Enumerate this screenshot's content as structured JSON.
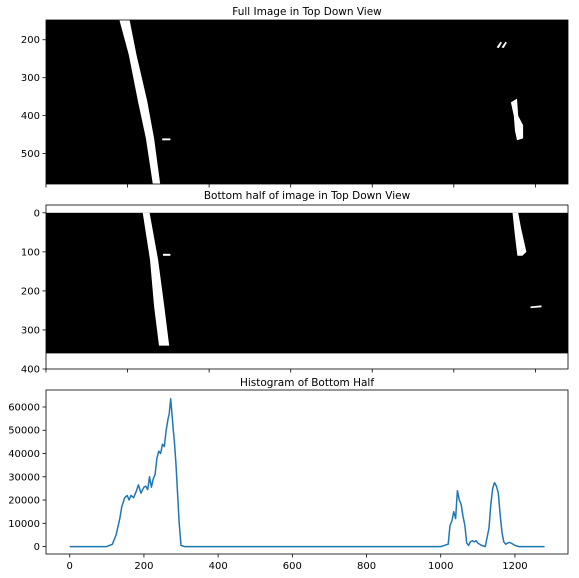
{
  "chart_data": [
    {
      "type": "image",
      "title": "Full Image in Top Down View",
      "xlim": [
        0,
        1280
      ],
      "ylim": [
        580,
        148
      ],
      "image_extent": {
        "x": [
          0,
          1280
        ],
        "y": [
          580,
          148
        ]
      },
      "yticks": [
        200,
        300,
        400,
        500
      ],
      "xticks": [
        0,
        200,
        400,
        600,
        800,
        1000,
        1200
      ],
      "show_xtick_labels": false,
      "image_background": "#000000",
      "lane_color": "#ffffff",
      "left_lane_path": [
        [
          180,
          148
        ],
        [
          205,
          148
        ],
        [
          222,
          240
        ],
        [
          248,
          360
        ],
        [
          265,
          460
        ],
        [
          280,
          580
        ],
        [
          262,
          580
        ],
        [
          245,
          460
        ],
        [
          225,
          360
        ],
        [
          203,
          240
        ]
      ],
      "left_lane_fragments": [
        [
          [
            285,
            460
          ],
          [
            305,
            460
          ],
          [
            305,
            465
          ],
          [
            285,
            465
          ]
        ]
      ],
      "right_lane_fragments": [
        [
          [
            1105,
            220
          ],
          [
            1115,
            205
          ],
          [
            1118,
            208
          ],
          [
            1110,
            222
          ]
        ],
        [
          [
            1117,
            220
          ],
          [
            1127,
            205
          ],
          [
            1130,
            208
          ],
          [
            1122,
            222
          ]
        ],
        [
          [
            1140,
            365
          ],
          [
            1155,
            355
          ],
          [
            1158,
            400
          ],
          [
            1170,
            425
          ],
          [
            1170,
            460
          ],
          [
            1155,
            465
          ],
          [
            1150,
            440
          ],
          [
            1147,
            400
          ]
        ]
      ]
    },
    {
      "type": "image",
      "title": "Bottom half of image in Top Down View",
      "xlim": [
        0,
        1280
      ],
      "ylim": [
        400,
        -20
      ],
      "image_extent": {
        "x": [
          0,
          1280
        ],
        "y": [
          360,
          0
        ]
      },
      "yticks": [
        0,
        100,
        200,
        300,
        400
      ],
      "xticks": [
        0,
        200,
        400,
        600,
        800,
        1000,
        1200
      ],
      "show_xtick_labels": false,
      "image_background": "#000000",
      "lane_color": "#ffffff",
      "left_lane_path": [
        [
          237,
          0
        ],
        [
          254,
          0
        ],
        [
          275,
          120
        ],
        [
          290,
          240
        ],
        [
          302,
          340
        ],
        [
          277,
          340
        ],
        [
          265,
          240
        ],
        [
          255,
          120
        ]
      ],
      "left_lane_fragments": [
        [
          [
            287,
            105
          ],
          [
            305,
            105
          ],
          [
            305,
            110
          ],
          [
            287,
            110
          ]
        ]
      ],
      "right_lane_fragments": [
        [
          [
            1144,
            0
          ],
          [
            1158,
            0
          ],
          [
            1165,
            40
          ],
          [
            1178,
            100
          ],
          [
            1168,
            110
          ],
          [
            1156,
            110
          ],
          [
            1150,
            60
          ]
        ],
        [
          [
            1188,
            240
          ],
          [
            1215,
            237
          ],
          [
            1215,
            242
          ],
          [
            1188,
            244
          ]
        ]
      ]
    },
    {
      "type": "line",
      "title": "Histogram of Bottom Half",
      "xlim": [
        -64,
        1343
      ],
      "ylim": [
        -3200,
        67300
      ],
      "xticks": [
        0,
        200,
        400,
        600,
        800,
        1000,
        1200
      ],
      "yticks": [
        0,
        10000,
        20000,
        30000,
        40000,
        50000,
        60000
      ],
      "color": "#1f77b4",
      "series": [
        {
          "x": [
            0,
            100,
            115,
            125,
            135,
            140,
            148,
            155,
            160,
            165,
            172,
            180,
            185,
            192,
            200,
            205,
            210,
            215,
            220,
            225,
            230,
            235,
            240,
            245,
            250,
            255,
            260,
            265,
            268,
            272,
            275,
            278,
            282,
            286,
            290,
            295,
            300,
            310,
            400,
            600,
            800,
            1000,
            1020,
            1025,
            1030,
            1035,
            1040,
            1045,
            1050,
            1055,
            1060,
            1065,
            1070,
            1075,
            1080,
            1085,
            1090,
            1095,
            1100,
            1110,
            1120,
            1130,
            1135,
            1140,
            1145,
            1150,
            1155,
            1160,
            1165,
            1170,
            1175,
            1180,
            1185,
            1190,
            1200,
            1210,
            1220,
            1230,
            1280
          ],
          "y": [
            0,
            0,
            1000,
            5000,
            12000,
            17000,
            21000,
            22000,
            20000,
            22000,
            21000,
            24000,
            26500,
            23000,
            25500,
            26000,
            24500,
            30000,
            25500,
            29000,
            31000,
            38000,
            41000,
            40000,
            44000,
            43000,
            50000,
            55000,
            57000,
            63500,
            58000,
            52000,
            45000,
            36000,
            25000,
            10000,
            500,
            0,
            0,
            0,
            0,
            0,
            1000,
            9000,
            11000,
            15000,
            12000,
            24000,
            20000,
            18000,
            13000,
            9000,
            1500,
            500,
            2000,
            2500,
            2000,
            2500,
            1500,
            500,
            0,
            8000,
            18000,
            25000,
            27500,
            26000,
            23000,
            14000,
            6000,
            2000,
            1000,
            1500,
            1800,
            1500,
            500,
            0,
            0,
            0,
            0
          ]
        }
      ]
    }
  ]
}
